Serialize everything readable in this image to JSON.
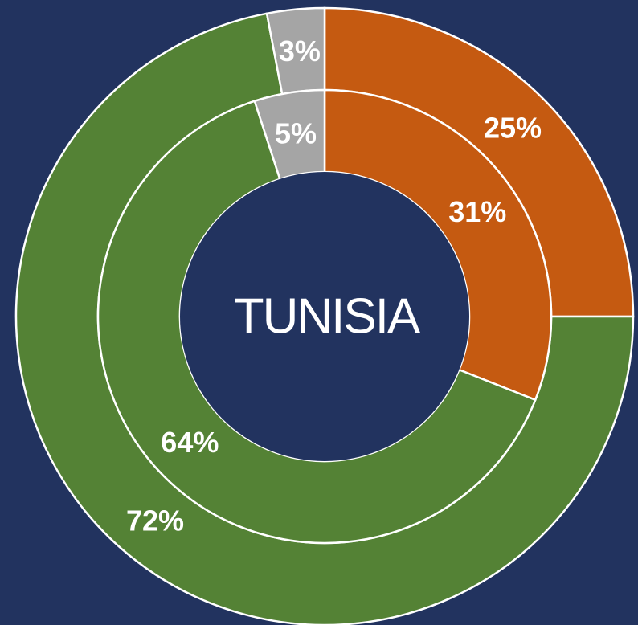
{
  "chart_data": {
    "type": "donut",
    "center_label": "TUNISIA",
    "series": [
      {
        "values": [
          25,
          72,
          3
        ],
        "value_labels": [
          "25%",
          "72%",
          "3%"
        ],
        "colors": [
          "#c55a11",
          "#548235",
          "#a5a5a5"
        ]
      },
      {
        "values": [
          31,
          64,
          5
        ],
        "value_labels": [
          "31%",
          "64%",
          "5%"
        ],
        "colors": [
          "#c55a11",
          "#548235",
          "#a5a5a5"
        ]
      }
    ]
  }
}
